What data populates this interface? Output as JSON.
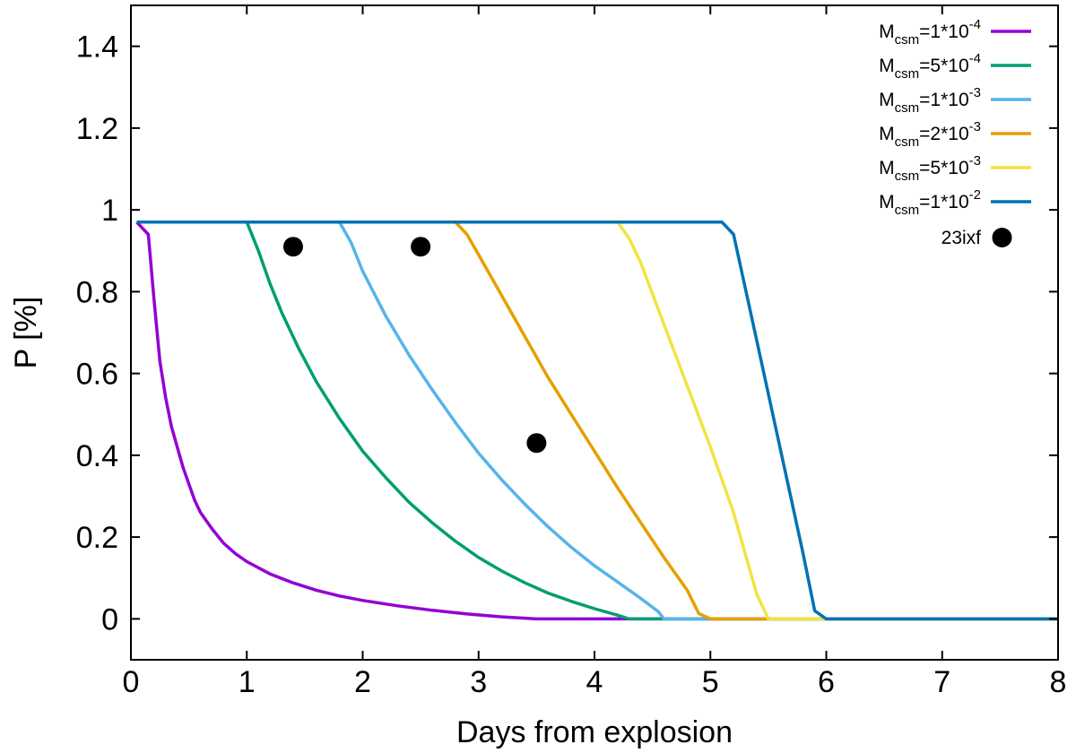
{
  "chart_data": {
    "type": "line",
    "xlabel": "Days from explosion",
    "ylabel": "P [%]",
    "xlim": [
      0,
      8
    ],
    "ylim": [
      -0.1,
      1.5
    ],
    "xticks": [
      "0",
      "1",
      "2",
      "3",
      "4",
      "5",
      "6",
      "7",
      "8"
    ],
    "yticks": [
      "0",
      "0.2",
      "0.4",
      "0.6",
      "0.8",
      "1",
      "1.2",
      "1.4"
    ],
    "grid": false,
    "legend_position": "top-right",
    "series": [
      {
        "name": "Mcsm=1*10^-4",
        "label_main": "M",
        "label_sub": "csm",
        "label_mid": "=1*10",
        "label_sup": "-4",
        "color": "#9400d3",
        "x": [
          0.05,
          0.15,
          0.2,
          0.25,
          0.3,
          0.35,
          0.4,
          0.45,
          0.5,
          0.55,
          0.6,
          0.7,
          0.8,
          0.9,
          1.0,
          1.2,
          1.4,
          1.6,
          1.8,
          2.0,
          2.3,
          2.6,
          2.9,
          3.2,
          3.5,
          3.6,
          4.0,
          5.0,
          6.0,
          8.0
        ],
        "y": [
          0.97,
          0.94,
          0.78,
          0.63,
          0.54,
          0.47,
          0.42,
          0.37,
          0.33,
          0.29,
          0.26,
          0.22,
          0.185,
          0.16,
          0.14,
          0.11,
          0.088,
          0.07,
          0.056,
          0.045,
          0.032,
          0.021,
          0.012,
          0.005,
          0.0,
          0.0,
          0.0,
          0.0,
          0.0,
          0.0
        ]
      },
      {
        "name": "Mcsm=5*10^-4",
        "label_main": "M",
        "label_sub": "csm",
        "label_mid": "=5*10",
        "label_sup": "-4",
        "color": "#009e73",
        "x": [
          0.05,
          1.0,
          1.1,
          1.2,
          1.3,
          1.45,
          1.6,
          1.8,
          2.0,
          2.2,
          2.4,
          2.6,
          2.8,
          3.0,
          3.2,
          3.4,
          3.6,
          3.8,
          4.0,
          4.2,
          4.3,
          5.0,
          8.0
        ],
        "y": [
          0.97,
          0.97,
          0.9,
          0.82,
          0.75,
          0.66,
          0.58,
          0.49,
          0.41,
          0.345,
          0.285,
          0.235,
          0.19,
          0.15,
          0.117,
          0.088,
          0.063,
          0.043,
          0.025,
          0.009,
          0.0,
          0.0,
          0.0
        ]
      },
      {
        "name": "Mcsm=1*10^-3",
        "label_main": "M",
        "label_sub": "csm",
        "label_mid": "=1*10",
        "label_sup": "-3",
        "color": "#56b4e9",
        "x": [
          0.05,
          1.8,
          1.9,
          2.0,
          2.2,
          2.4,
          2.6,
          2.8,
          3.0,
          3.2,
          3.4,
          3.6,
          3.8,
          4.0,
          4.2,
          4.4,
          4.55,
          4.6,
          8.0
        ],
        "y": [
          0.97,
          0.97,
          0.92,
          0.85,
          0.74,
          0.645,
          0.56,
          0.48,
          0.405,
          0.34,
          0.28,
          0.225,
          0.175,
          0.13,
          0.09,
          0.05,
          0.018,
          0.0,
          0.0
        ]
      },
      {
        "name": "Mcsm=2*10^-3",
        "label_main": "M",
        "label_sub": "csm",
        "label_mid": "=2*10",
        "label_sup": "-3",
        "color": "#e69f00",
        "x": [
          0.05,
          2.8,
          2.9,
          3.0,
          3.2,
          3.4,
          3.6,
          3.8,
          4.0,
          4.2,
          4.4,
          4.6,
          4.8,
          4.9,
          5.0,
          8.0
        ],
        "y": [
          0.97,
          0.97,
          0.94,
          0.89,
          0.79,
          0.69,
          0.59,
          0.5,
          0.41,
          0.32,
          0.235,
          0.15,
          0.07,
          0.013,
          0.0,
          0.0
        ]
      },
      {
        "name": "Mcsm=5*10^-3",
        "label_main": "M",
        "label_sub": "csm",
        "label_mid": "=5*10",
        "label_sup": "-3",
        "color": "#f0e442",
        "x": [
          0.05,
          4.2,
          4.3,
          4.4,
          4.6,
          4.8,
          5.0,
          5.2,
          5.4,
          5.5,
          8.0
        ],
        "y": [
          0.97,
          0.97,
          0.93,
          0.87,
          0.72,
          0.57,
          0.42,
          0.26,
          0.06,
          0.0,
          0.0
        ]
      },
      {
        "name": "Mcsm=1*10^-2",
        "label_main": "M",
        "label_sub": "csm",
        "label_mid": "=1*10",
        "label_sup": "-2",
        "color": "#0072b2",
        "x": [
          0.05,
          5.1,
          5.2,
          5.4,
          5.6,
          5.8,
          5.9,
          6.0,
          8.0
        ],
        "y": [
          0.97,
          0.97,
          0.94,
          0.68,
          0.42,
          0.16,
          0.02,
          0.0,
          0.0
        ]
      }
    ],
    "points": {
      "name": "23ixf",
      "color": "#000000",
      "x": [
        1.4,
        2.5,
        3.5
      ],
      "y": [
        0.91,
        0.91,
        0.43
      ]
    }
  }
}
